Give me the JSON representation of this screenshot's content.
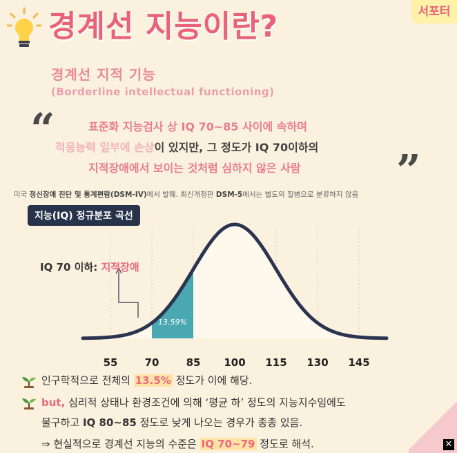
{
  "title": "경계선 지능이란?",
  "logo_text": "서포터",
  "subtitle_ko": "경계선 지적 기능",
  "subtitle_en": "(Borderline intellectual functioning)",
  "definition": {
    "line1": "표준화 지능검사 상 IQ 70~85 사이에 속하며",
    "line2_a": "적응능력 일부에 손상",
    "line2_b": "이 있지만, 그 정도가 IQ 70이하의",
    "line3": "지적장애에서 보이는 것처럼 심하지 않은 사람"
  },
  "note": {
    "p1": "미국 ",
    "b1": "정신장애 진단 및 통계편람(DSM-IV)",
    "p2": "에서 발췌. 최신개정판 ",
    "b2": "DSM-5",
    "p3": "에서는 별도의 질병으로 분류하지 않음"
  },
  "chart_badge": "지능(IQ) 정규분포 곡선",
  "callout": {
    "label": "IQ 70 이하: ",
    "value": "지적장애"
  },
  "chart_data": {
    "type": "area",
    "distribution": "normal",
    "mean": 100,
    "sd": 15,
    "x_ticks": [
      55,
      70,
      85,
      100,
      115,
      130,
      145
    ],
    "xlim": [
      45,
      155
    ],
    "highlight_range": [
      70,
      85
    ],
    "highlight_label": "13.59%",
    "highlight_color": "#4aa8b2",
    "curve_color": "#2b3550"
  },
  "bullets": {
    "b1_a": "인구학적으로 전체의 ",
    "b1_hl": "13.5%",
    "b1_b": " 정도가 이에 해당.",
    "b2_a": "but,",
    "b2_b": " 심리적 상태나 환경조건에 의해 ‘평균 하’ 정도의 지능지수임에도",
    "b3_a": "불구하고 ",
    "b3_bold": "IQ 80~85",
    "b3_b": " 정도로 낮게 나오는 경우가 종종 있음.",
    "b4_a": "⇒ 현실적으로 경계선 지능의 수준은 ",
    "b4_hl": "IQ 70~79",
    "b4_b": " 정도로 해석."
  },
  "close_icon": "✕"
}
